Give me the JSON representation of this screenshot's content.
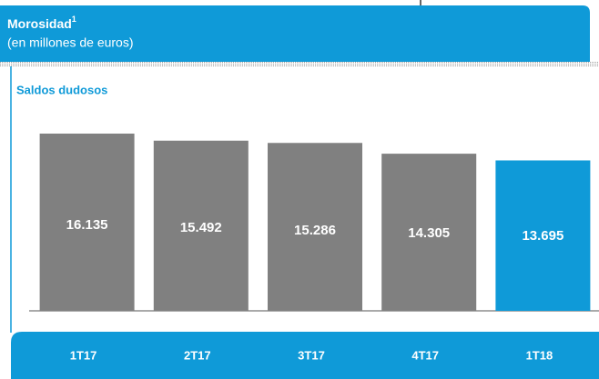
{
  "chart_data": {
    "type": "bar",
    "title": "Morosidad",
    "title_note": "1",
    "subtitle": "(en millones de euros)",
    "series_label": "Saldos dudosos",
    "categories": [
      "1T17",
      "2T17",
      "3T17",
      "4T17",
      "1T18"
    ],
    "values": [
      16135,
      15492,
      15286,
      14305,
      13695
    ],
    "value_labels": [
      "16.135",
      "15.492",
      "15.286",
      "14.305",
      "13.695"
    ],
    "colors": [
      "#808080",
      "#808080",
      "#808080",
      "#808080",
      "#0f9ad8"
    ]
  }
}
